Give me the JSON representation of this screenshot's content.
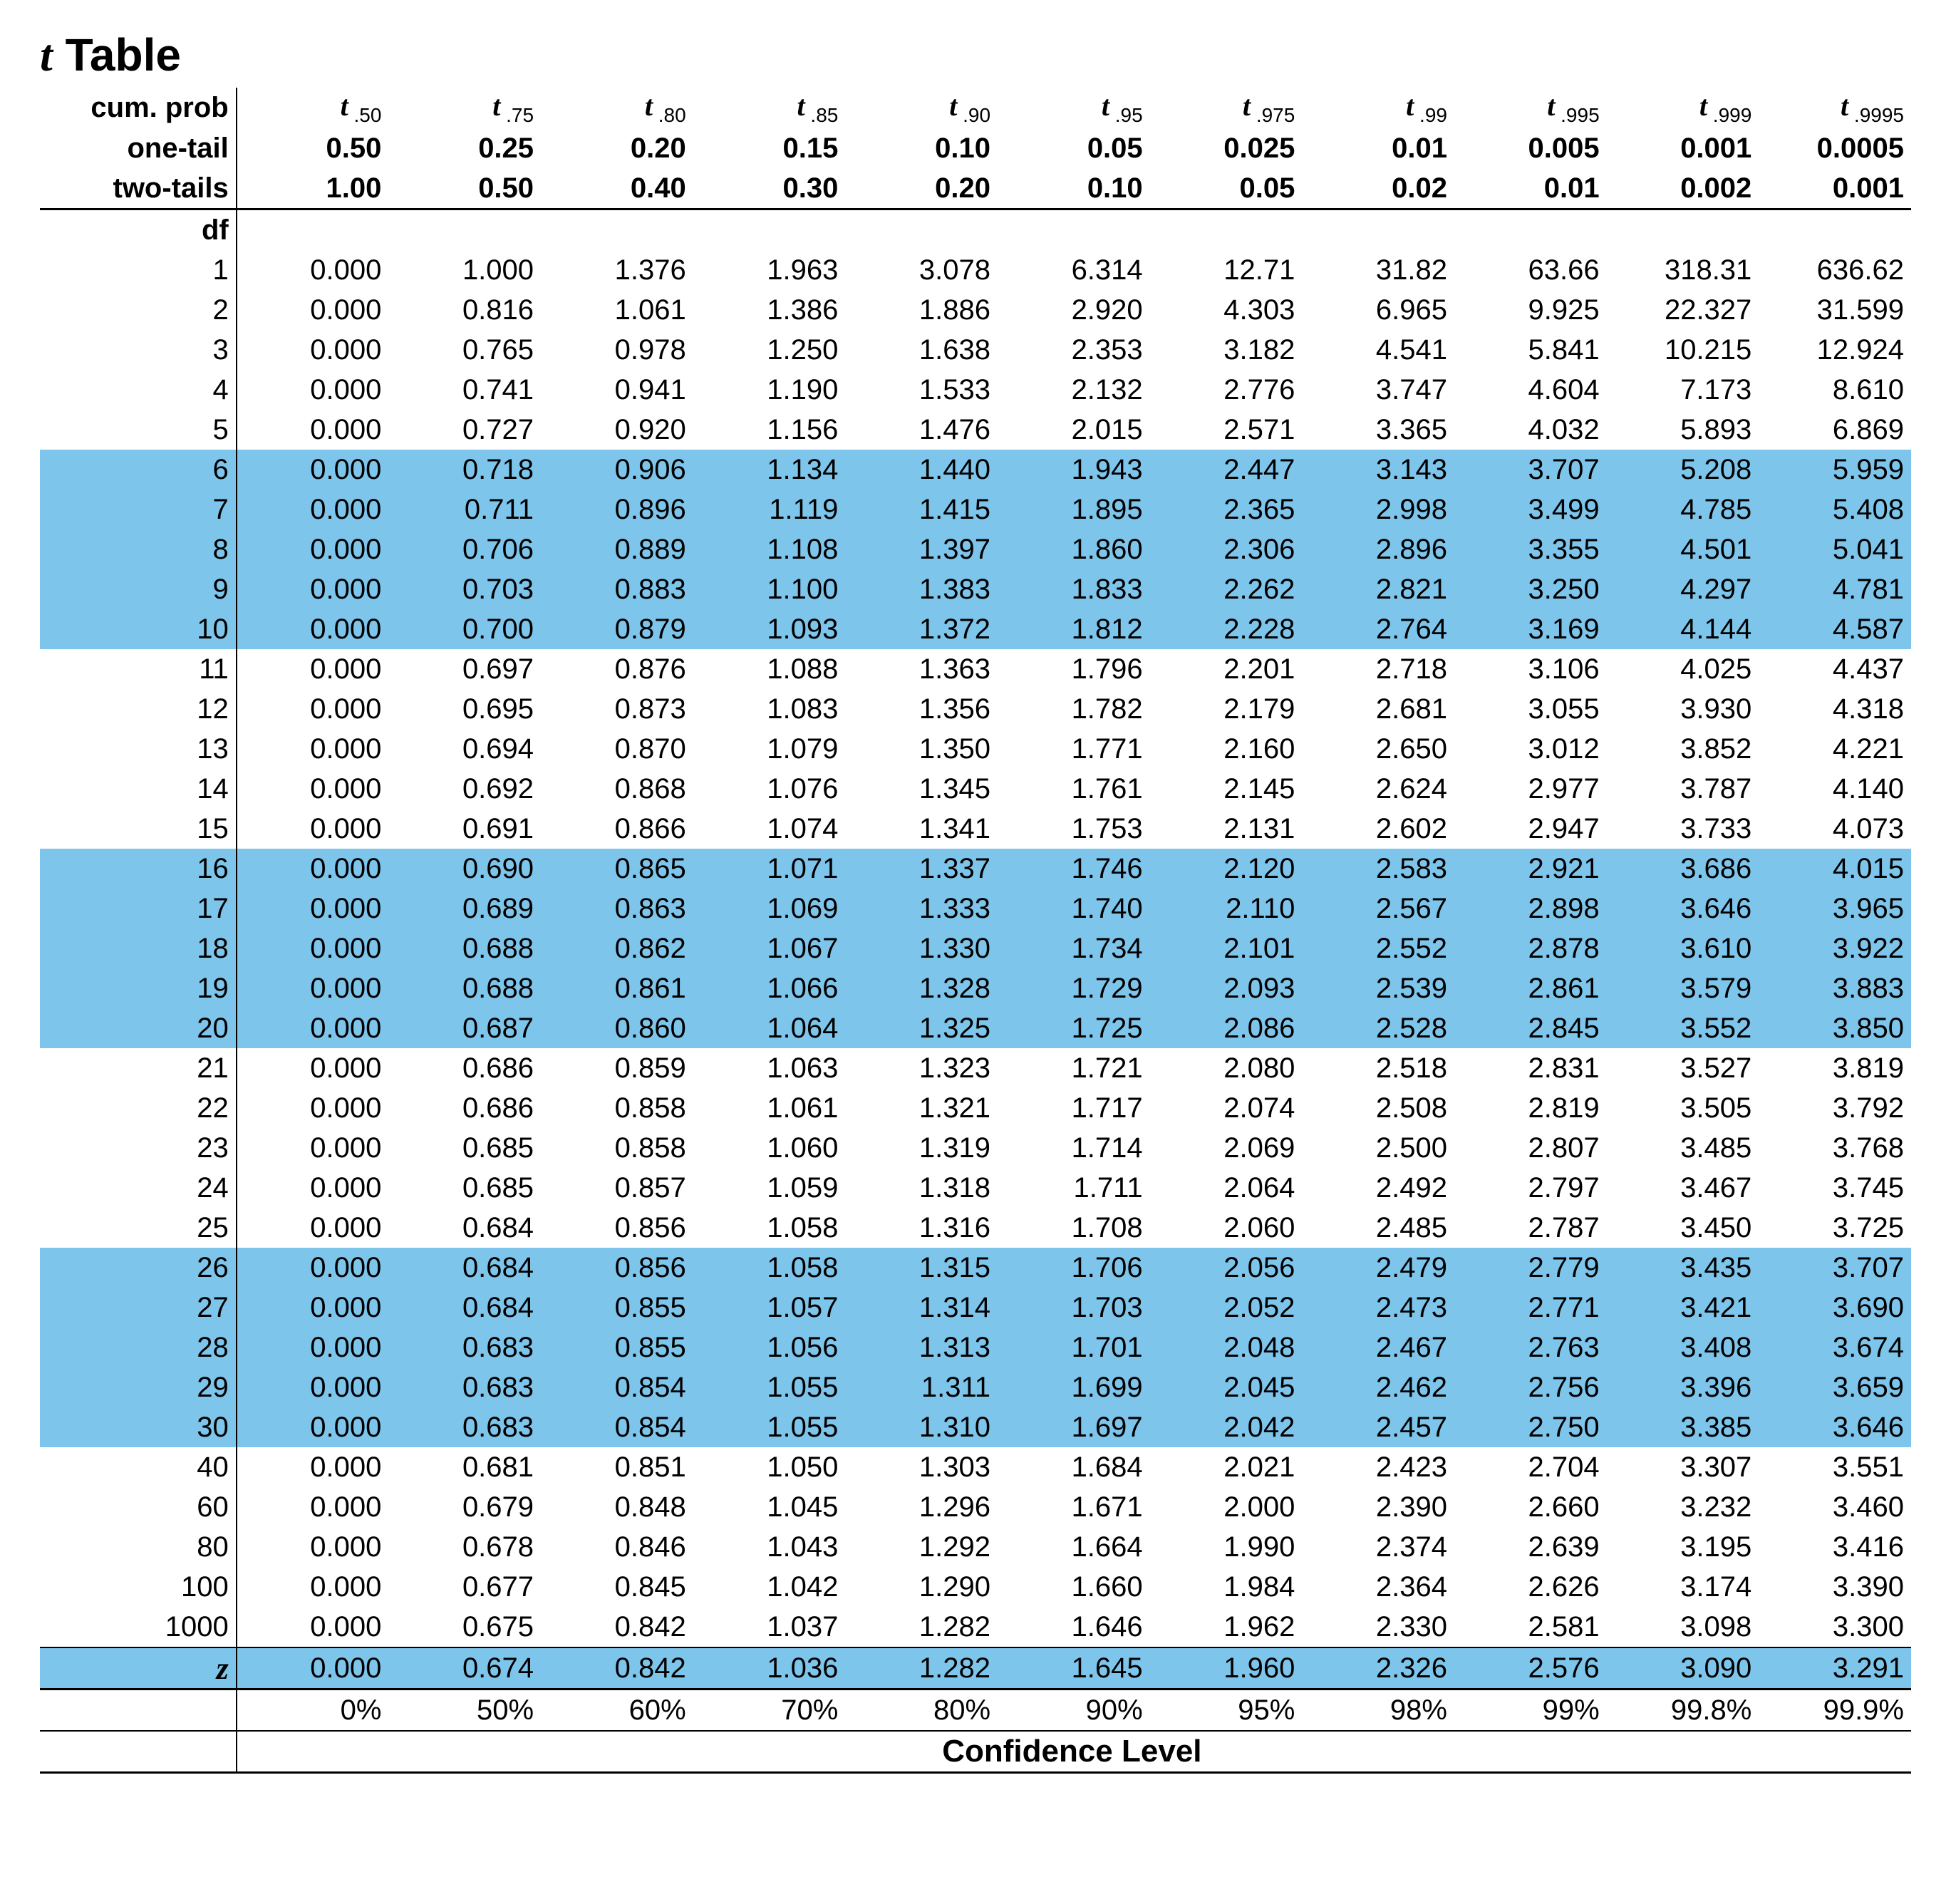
{
  "title_prefix_italic": "t",
  "title_rest": " Table",
  "highlight_color": "#7ec5ec",
  "background_color": "#ffffff",
  "text_color": "#000000",
  "header": {
    "row_labels": [
      "cum. prob",
      "one-tail",
      "two-tails"
    ],
    "t_letter": "t",
    "cum_prob_subs": [
      ".50",
      ".75",
      ".80",
      ".85",
      ".90",
      ".95",
      ".975",
      ".99",
      ".995",
      ".999",
      ".9995"
    ],
    "one_tail": [
      "0.50",
      "0.25",
      "0.20",
      "0.15",
      "0.10",
      "0.05",
      "0.025",
      "0.01",
      "0.005",
      "0.001",
      "0.0005"
    ],
    "two_tails": [
      "1.00",
      "0.50",
      "0.40",
      "0.30",
      "0.20",
      "0.10",
      "0.05",
      "0.02",
      "0.01",
      "0.002",
      "0.001"
    ]
  },
  "df_label": "df",
  "band_size": 5,
  "rows": [
    {
      "df": "1",
      "v": [
        "0.000",
        "1.000",
        "1.376",
        "1.963",
        "3.078",
        "6.314",
        "12.71",
        "31.82",
        "63.66",
        "318.31",
        "636.62"
      ]
    },
    {
      "df": "2",
      "v": [
        "0.000",
        "0.816",
        "1.061",
        "1.386",
        "1.886",
        "2.920",
        "4.303",
        "6.965",
        "9.925",
        "22.327",
        "31.599"
      ]
    },
    {
      "df": "3",
      "v": [
        "0.000",
        "0.765",
        "0.978",
        "1.250",
        "1.638",
        "2.353",
        "3.182",
        "4.541",
        "5.841",
        "10.215",
        "12.924"
      ]
    },
    {
      "df": "4",
      "v": [
        "0.000",
        "0.741",
        "0.941",
        "1.190",
        "1.533",
        "2.132",
        "2.776",
        "3.747",
        "4.604",
        "7.173",
        "8.610"
      ]
    },
    {
      "df": "5",
      "v": [
        "0.000",
        "0.727",
        "0.920",
        "1.156",
        "1.476",
        "2.015",
        "2.571",
        "3.365",
        "4.032",
        "5.893",
        "6.869"
      ]
    },
    {
      "df": "6",
      "v": [
        "0.000",
        "0.718",
        "0.906",
        "1.134",
        "1.440",
        "1.943",
        "2.447",
        "3.143",
        "3.707",
        "5.208",
        "5.959"
      ]
    },
    {
      "df": "7",
      "v": [
        "0.000",
        "0.711",
        "0.896",
        "1.119",
        "1.415",
        "1.895",
        "2.365",
        "2.998",
        "3.499",
        "4.785",
        "5.408"
      ]
    },
    {
      "df": "8",
      "v": [
        "0.000",
        "0.706",
        "0.889",
        "1.108",
        "1.397",
        "1.860",
        "2.306",
        "2.896",
        "3.355",
        "4.501",
        "5.041"
      ]
    },
    {
      "df": "9",
      "v": [
        "0.000",
        "0.703",
        "0.883",
        "1.100",
        "1.383",
        "1.833",
        "2.262",
        "2.821",
        "3.250",
        "4.297",
        "4.781"
      ]
    },
    {
      "df": "10",
      "v": [
        "0.000",
        "0.700",
        "0.879",
        "1.093",
        "1.372",
        "1.812",
        "2.228",
        "2.764",
        "3.169",
        "4.144",
        "4.587"
      ]
    },
    {
      "df": "11",
      "v": [
        "0.000",
        "0.697",
        "0.876",
        "1.088",
        "1.363",
        "1.796",
        "2.201",
        "2.718",
        "3.106",
        "4.025",
        "4.437"
      ]
    },
    {
      "df": "12",
      "v": [
        "0.000",
        "0.695",
        "0.873",
        "1.083",
        "1.356",
        "1.782",
        "2.179",
        "2.681",
        "3.055",
        "3.930",
        "4.318"
      ]
    },
    {
      "df": "13",
      "v": [
        "0.000",
        "0.694",
        "0.870",
        "1.079",
        "1.350",
        "1.771",
        "2.160",
        "2.650",
        "3.012",
        "3.852",
        "4.221"
      ]
    },
    {
      "df": "14",
      "v": [
        "0.000",
        "0.692",
        "0.868",
        "1.076",
        "1.345",
        "1.761",
        "2.145",
        "2.624",
        "2.977",
        "3.787",
        "4.140"
      ]
    },
    {
      "df": "15",
      "v": [
        "0.000",
        "0.691",
        "0.866",
        "1.074",
        "1.341",
        "1.753",
        "2.131",
        "2.602",
        "2.947",
        "3.733",
        "4.073"
      ]
    },
    {
      "df": "16",
      "v": [
        "0.000",
        "0.690",
        "0.865",
        "1.071",
        "1.337",
        "1.746",
        "2.120",
        "2.583",
        "2.921",
        "3.686",
        "4.015"
      ]
    },
    {
      "df": "17",
      "v": [
        "0.000",
        "0.689",
        "0.863",
        "1.069",
        "1.333",
        "1.740",
        "2.110",
        "2.567",
        "2.898",
        "3.646",
        "3.965"
      ]
    },
    {
      "df": "18",
      "v": [
        "0.000",
        "0.688",
        "0.862",
        "1.067",
        "1.330",
        "1.734",
        "2.101",
        "2.552",
        "2.878",
        "3.610",
        "3.922"
      ]
    },
    {
      "df": "19",
      "v": [
        "0.000",
        "0.688",
        "0.861",
        "1.066",
        "1.328",
        "1.729",
        "2.093",
        "2.539",
        "2.861",
        "3.579",
        "3.883"
      ]
    },
    {
      "df": "20",
      "v": [
        "0.000",
        "0.687",
        "0.860",
        "1.064",
        "1.325",
        "1.725",
        "2.086",
        "2.528",
        "2.845",
        "3.552",
        "3.850"
      ]
    },
    {
      "df": "21",
      "v": [
        "0.000",
        "0.686",
        "0.859",
        "1.063",
        "1.323",
        "1.721",
        "2.080",
        "2.518",
        "2.831",
        "3.527",
        "3.819"
      ]
    },
    {
      "df": "22",
      "v": [
        "0.000",
        "0.686",
        "0.858",
        "1.061",
        "1.321",
        "1.717",
        "2.074",
        "2.508",
        "2.819",
        "3.505",
        "3.792"
      ]
    },
    {
      "df": "23",
      "v": [
        "0.000",
        "0.685",
        "0.858",
        "1.060",
        "1.319",
        "1.714",
        "2.069",
        "2.500",
        "2.807",
        "3.485",
        "3.768"
      ]
    },
    {
      "df": "24",
      "v": [
        "0.000",
        "0.685",
        "0.857",
        "1.059",
        "1.318",
        "1.711",
        "2.064",
        "2.492",
        "2.797",
        "3.467",
        "3.745"
      ]
    },
    {
      "df": "25",
      "v": [
        "0.000",
        "0.684",
        "0.856",
        "1.058",
        "1.316",
        "1.708",
        "2.060",
        "2.485",
        "2.787",
        "3.450",
        "3.725"
      ]
    },
    {
      "df": "26",
      "v": [
        "0.000",
        "0.684",
        "0.856",
        "1.058",
        "1.315",
        "1.706",
        "2.056",
        "2.479",
        "2.779",
        "3.435",
        "3.707"
      ]
    },
    {
      "df": "27",
      "v": [
        "0.000",
        "0.684",
        "0.855",
        "1.057",
        "1.314",
        "1.703",
        "2.052",
        "2.473",
        "2.771",
        "3.421",
        "3.690"
      ]
    },
    {
      "df": "28",
      "v": [
        "0.000",
        "0.683",
        "0.855",
        "1.056",
        "1.313",
        "1.701",
        "2.048",
        "2.467",
        "2.763",
        "3.408",
        "3.674"
      ]
    },
    {
      "df": "29",
      "v": [
        "0.000",
        "0.683",
        "0.854",
        "1.055",
        "1.311",
        "1.699",
        "2.045",
        "2.462",
        "2.756",
        "3.396",
        "3.659"
      ]
    },
    {
      "df": "30",
      "v": [
        "0.000",
        "0.683",
        "0.854",
        "1.055",
        "1.310",
        "1.697",
        "2.042",
        "2.457",
        "2.750",
        "3.385",
        "3.646"
      ]
    },
    {
      "df": "40",
      "v": [
        "0.000",
        "0.681",
        "0.851",
        "1.050",
        "1.303",
        "1.684",
        "2.021",
        "2.423",
        "2.704",
        "3.307",
        "3.551"
      ]
    },
    {
      "df": "60",
      "v": [
        "0.000",
        "0.679",
        "0.848",
        "1.045",
        "1.296",
        "1.671",
        "2.000",
        "2.390",
        "2.660",
        "3.232",
        "3.460"
      ]
    },
    {
      "df": "80",
      "v": [
        "0.000",
        "0.678",
        "0.846",
        "1.043",
        "1.292",
        "1.664",
        "1.990",
        "2.374",
        "2.639",
        "3.195",
        "3.416"
      ]
    },
    {
      "df": "100",
      "v": [
        "0.000",
        "0.677",
        "0.845",
        "1.042",
        "1.290",
        "1.660",
        "1.984",
        "2.364",
        "2.626",
        "3.174",
        "3.390"
      ]
    },
    {
      "df": "1000",
      "v": [
        "0.000",
        "0.675",
        "0.842",
        "1.037",
        "1.282",
        "1.646",
        "1.962",
        "2.330",
        "2.581",
        "3.098",
        "3.300"
      ]
    }
  ],
  "z_row": {
    "label": "z",
    "v": [
      "0.000",
      "0.674",
      "0.842",
      "1.036",
      "1.282",
      "1.645",
      "1.960",
      "2.326",
      "2.576",
      "3.090",
      "3.291"
    ]
  },
  "confidence": {
    "values": [
      "0%",
      "50%",
      "60%",
      "70%",
      "80%",
      "90%",
      "95%",
      "98%",
      "99%",
      "99.8%",
      "99.9%"
    ],
    "label": "Confidence Level"
  }
}
